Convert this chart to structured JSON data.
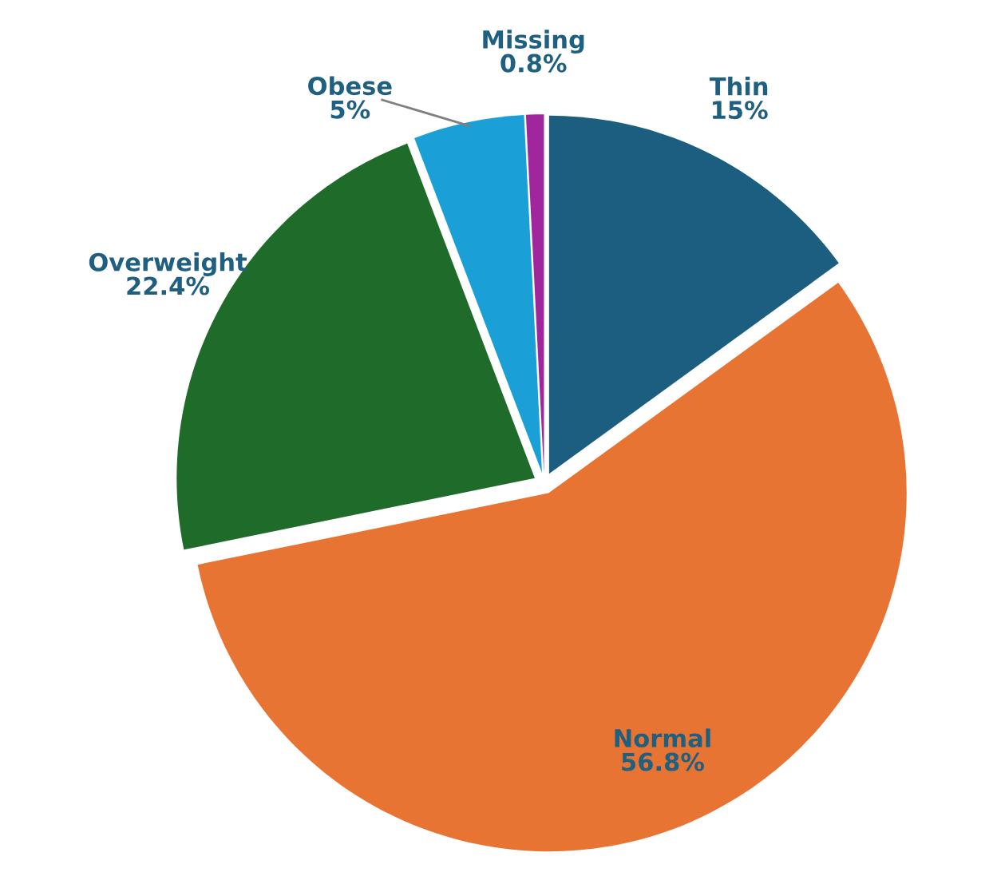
{
  "chart_data": {
    "type": "pie",
    "categories": [
      "Thin",
      "Normal",
      "Overweight",
      "Obese",
      "Missing"
    ],
    "values": [
      15,
      56.8,
      22.4,
      5,
      0.8
    ],
    "colors": [
      "#1b5e80",
      "#e87433",
      "#1f6b2a",
      "#1a9fd6",
      "#a0269e"
    ],
    "value_labels": [
      "15%",
      "56.8%",
      "22.4%",
      "5%",
      "0.8%"
    ]
  }
}
